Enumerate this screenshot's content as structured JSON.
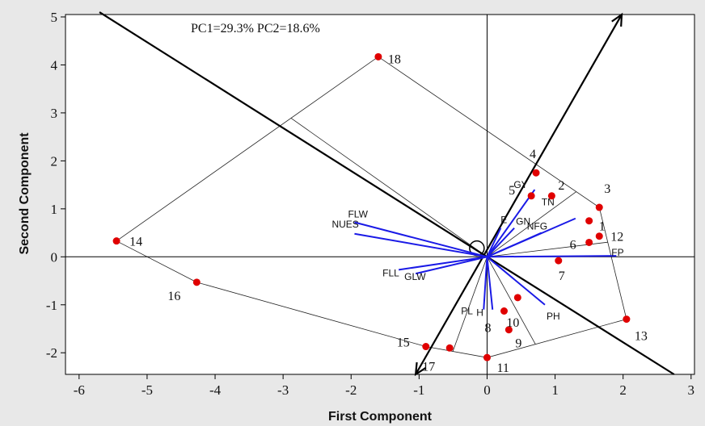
{
  "chart_data": {
    "type": "scatter",
    "annotation": "PC1=29.3% PC2=18.6%",
    "xlabel": "First Component",
    "ylabel": "Second Component",
    "xlim": [
      -6.2,
      3.05
    ],
    "ylim": [
      -2.45,
      5.05
    ],
    "x_ticks": [
      -6,
      -5,
      -4,
      -3,
      -2,
      -1,
      0,
      1,
      2,
      3
    ],
    "y_ticks": [
      -2,
      -1,
      0,
      1,
      2,
      3,
      4,
      5
    ],
    "grid": false,
    "colors": {
      "points": "#e00000",
      "vectors": "#1a1ae6",
      "lines": "#000000",
      "background": "#ffffff"
    },
    "points": [
      {
        "label": "1",
        "x": 1.5,
        "y": 0.75
      },
      {
        "label": "2",
        "x": 0.95,
        "y": 1.27
      },
      {
        "label": "3",
        "x": 1.65,
        "y": 1.03
      },
      {
        "label": "4",
        "x": 0.72,
        "y": 1.75
      },
      {
        "label": "5",
        "x": 0.65,
        "y": 1.27
      },
      {
        "label": "6",
        "x": 1.5,
        "y": 0.3
      },
      {
        "label": "7",
        "x": 1.05,
        "y": -0.08
      },
      {
        "label": "8",
        "x": 0.25,
        "y": -1.13
      },
      {
        "label": "9",
        "x": 0.32,
        "y": -1.52
      },
      {
        "label": "10",
        "x": 0.45,
        "y": -0.85
      },
      {
        "label": "11",
        "x": 0.0,
        "y": -2.1
      },
      {
        "label": "12",
        "x": 1.65,
        "y": 0.43
      },
      {
        "label": "13",
        "x": 2.05,
        "y": -1.3
      },
      {
        "label": "14",
        "x": -5.45,
        "y": 0.33
      },
      {
        "label": "15",
        "x": -0.9,
        "y": -1.87
      },
      {
        "label": "16",
        "x": -4.27,
        "y": -0.53
      },
      {
        "label": "17",
        "x": -0.55,
        "y": -1.9
      },
      {
        "label": "18",
        "x": -1.6,
        "y": 4.17
      }
    ],
    "vectors": [
      {
        "label": "FLW",
        "x": -1.95,
        "y": 0.72
      },
      {
        "label": "NUES",
        "x": -1.95,
        "y": 0.48
      },
      {
        "label": "FLL",
        "x": -1.3,
        "y": -0.27
      },
      {
        "label": "GLW",
        "x": -1.05,
        "y": -0.35
      },
      {
        "label": "GY",
        "x": 0.7,
        "y": 1.4
      },
      {
        "label": "TN",
        "x": 1.3,
        "y": 0.8
      },
      {
        "label": "NFG",
        "x": 0.8,
        "y": 0.5
      },
      {
        "label": "GN",
        "x": 0.4,
        "y": 0.6
      },
      {
        "label": "E",
        "x": 0.2,
        "y": 0.6
      },
      {
        "label": "FP",
        "x": 1.9,
        "y": 0.02
      },
      {
        "label": "PH",
        "x": 0.85,
        "y": -1.0
      },
      {
        "label": "PL",
        "x": -0.05,
        "y": -1.1
      },
      {
        "label": "H",
        "x": 0.08,
        "y": -1.1
      }
    ]
  }
}
